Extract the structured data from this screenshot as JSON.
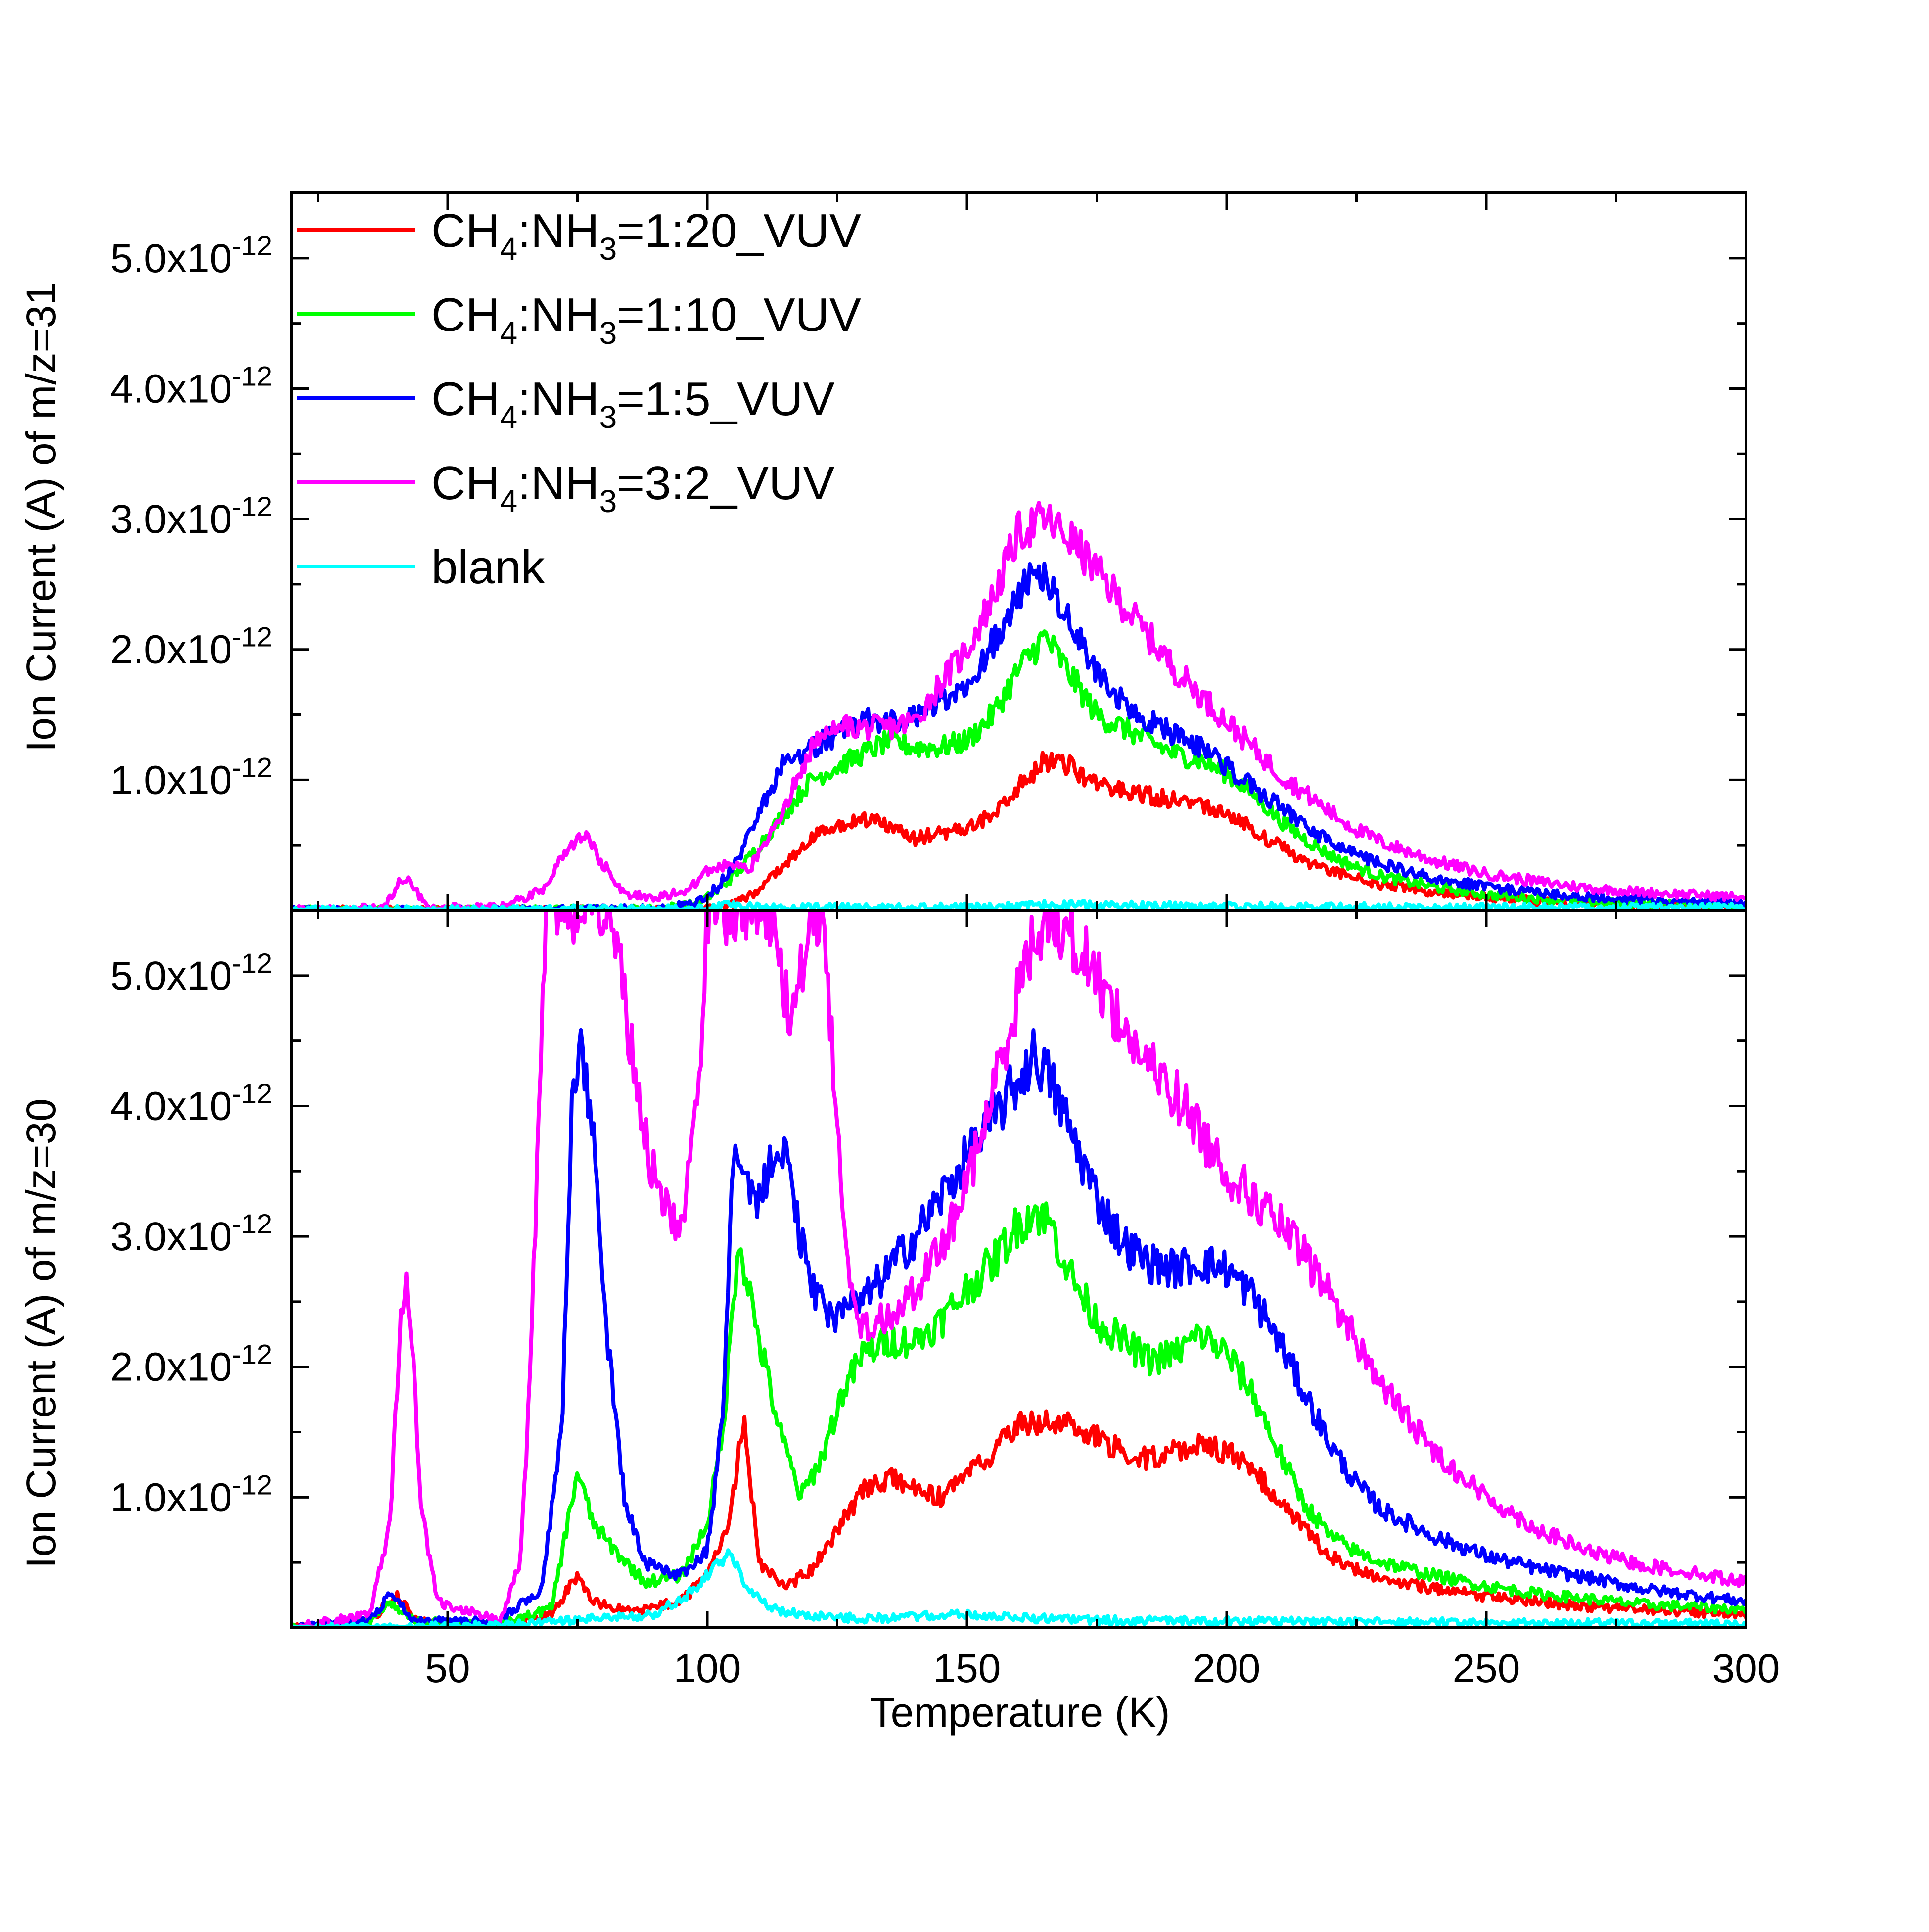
{
  "chart_data": [
    {
      "type": "line",
      "panel": "top",
      "ylabel": "Ion Current (A) of m/z=31",
      "xlabel": "",
      "xlim": [
        20,
        300
      ],
      "ylim": [
        0,
        5.5e-12
      ],
      "ytick_labels": [
        "1.0x10-12",
        "2.0x10-12",
        "3.0x10-12",
        "4.0x10-12",
        "5.0x10-12"
      ],
      "ytick_values": [
        1e-12,
        2e-12,
        3e-12,
        4e-12,
        5e-12
      ],
      "legend_position": "top-left",
      "series": [
        {
          "name": "CH4:NH3=1:20_VUV",
          "color": "#ff0000",
          "x": [
            20,
            60,
            90,
            100,
            105,
            110,
            115,
            120,
            125,
            130,
            135,
            140,
            145,
            150,
            155,
            160,
            165,
            170,
            175,
            180,
            185,
            190,
            195,
            200,
            205,
            210,
            215,
            220,
            225,
            230,
            240,
            250,
            260,
            270,
            280,
            290,
            300
          ],
          "y": [
            0,
            0,
            0,
            1e-14,
            5e-14,
            1.5e-13,
            3.5e-13,
            5.5e-13,
            6.5e-13,
            7e-13,
            6.5e-13,
            5.5e-13,
            6e-13,
            6.2e-13,
            7.5e-13,
            9.5e-13,
            1.15e-12,
            1.1e-12,
            9.5e-13,
            9.2e-13,
            8.8e-13,
            8.5e-13,
            8.2e-13,
            7.5e-13,
            6.2e-13,
            5e-13,
            3.8e-13,
            3e-13,
            2.5e-13,
            2e-13,
            1.4e-13,
            1e-13,
            7e-14,
            5e-14,
            4e-14,
            3e-14,
            2e-14
          ]
        },
        {
          "name": "CH4:NH3=1:10_VUV",
          "color": "#00ff00",
          "x": [
            20,
            60,
            90,
            98,
            102,
            106,
            110,
            115,
            120,
            125,
            130,
            135,
            140,
            145,
            150,
            155,
            160,
            165,
            170,
            175,
            180,
            185,
            190,
            195,
            200,
            205,
            210,
            215,
            220,
            225,
            230,
            240,
            250,
            260,
            270,
            280,
            290,
            300
          ],
          "y": [
            0,
            0,
            1e-14,
            5e-14,
            1.5e-13,
            3e-13,
            5e-13,
            7.5e-13,
            1e-12,
            1.1e-12,
            1.2e-12,
            1.3e-12,
            1.25e-12,
            1.25e-12,
            1.3e-12,
            1.5e-12,
            1.85e-12,
            2.1e-12,
            1.8e-12,
            1.5e-12,
            1.4e-12,
            1.3e-12,
            1.2e-12,
            1.15e-12,
            1.05e-12,
            9e-13,
            7e-13,
            5.5e-13,
            4.2e-13,
            3.3e-13,
            2.6e-13,
            1.8e-13,
            1.2e-13,
            9e-14,
            6e-14,
            5e-14,
            4e-14,
            3e-14
          ]
        },
        {
          "name": "CH4:NH3=1:5_VUV",
          "color": "#0000ff",
          "x": [
            20,
            60,
            90,
            98,
            102,
            106,
            110,
            115,
            120,
            125,
            130,
            135,
            140,
            145,
            150,
            155,
            160,
            165,
            170,
            175,
            180,
            185,
            190,
            195,
            200,
            205,
            210,
            215,
            220,
            225,
            230,
            240,
            250,
            260,
            270,
            280,
            290,
            300
          ],
          "y": [
            0,
            0,
            1e-14,
            5e-14,
            1.8e-13,
            4e-13,
            7.5e-13,
            1.15e-12,
            1.25e-12,
            1.35e-12,
            1.45e-12,
            1.45e-12,
            1.5e-12,
            1.6e-12,
            1.75e-12,
            2.05e-12,
            2.45e-12,
            2.6e-12,
            2.2e-12,
            1.85e-12,
            1.6e-12,
            1.45e-12,
            1.35e-12,
            1.25e-12,
            1.1e-12,
            9.5e-13,
            8e-13,
            6.5e-13,
            5.2e-13,
            4.2e-13,
            3.5e-13,
            2.5e-13,
            1.8e-13,
            1.3e-13,
            1e-13,
            8e-14,
            6e-14,
            5e-14
          ]
        },
        {
          "name": "CH4:NH3=3:2_VUV",
          "color": "#ff00ff",
          "x": [
            20,
            38,
            41,
            43,
            46,
            60,
            68,
            72,
            76,
            80,
            84,
            90,
            96,
            100,
            104,
            108,
            115,
            120,
            125,
            130,
            135,
            140,
            145,
            150,
            155,
            160,
            165,
            170,
            175,
            180,
            185,
            190,
            195,
            200,
            205,
            210,
            215,
            220,
            225,
            230,
            240,
            250,
            260,
            270,
            280,
            290,
            300
          ],
          "y": [
            0,
            2e-14,
            2.5e-13,
            2e-13,
            2e-14,
            2e-14,
            1.5e-13,
            4e-13,
            6e-13,
            3.5e-13,
            1.2e-13,
            1e-13,
            1.5e-13,
            3e-13,
            3.5e-13,
            3e-13,
            8e-13,
            1.25e-12,
            1.4e-12,
            1.4e-12,
            1.4e-12,
            1.45e-12,
            1.75e-12,
            2e-12,
            2.4e-12,
            2.9e-12,
            3e-12,
            2.85e-12,
            2.6e-12,
            2.35e-12,
            2.1e-12,
            1.85e-12,
            1.65e-12,
            1.45e-12,
            1.25e-12,
            1.05e-12,
            9e-13,
            7.5e-13,
            6.2e-13,
            5.2e-13,
            3.8e-13,
            2.8e-13,
            2.2e-13,
            1.7e-13,
            1.4e-13,
            1.2e-13,
            1e-13
          ]
        },
        {
          "name": "blank",
          "color": "#00ffff",
          "x": [
            20,
            100,
            105,
            110,
            150,
            165,
            200,
            250,
            300
          ],
          "y": [
            0,
            1e-14,
            5e-14,
            2e-14,
            2e-14,
            4e-14,
            3e-14,
            2e-14,
            2e-14
          ]
        }
      ]
    },
    {
      "type": "line",
      "panel": "bottom",
      "ylabel": "Ion Current (A) of m/z=30",
      "xlabel": "Temperature (K)",
      "xlim": [
        20,
        300
      ],
      "ylim": [
        0,
        5.5e-12
      ],
      "xtick_labels": [
        "50",
        "100",
        "150",
        "200",
        "250",
        "300"
      ],
      "xtick_values": [
        50,
        100,
        150,
        200,
        250,
        300
      ],
      "ytick_labels": [
        "1.0x10-12",
        "2.0x10-12",
        "3.0x10-12",
        "4.0x10-12",
        "5.0x10-12"
      ],
      "ytick_values": [
        1e-12,
        2e-12,
        3e-12,
        4e-12,
        5e-12
      ],
      "series": [
        {
          "name": "CH4:NH3=1:20_VUV",
          "color": "#ff0000",
          "x": [
            20,
            35,
            40,
            44,
            60,
            70,
            75,
            78,
            85,
            95,
            100,
            104,
            107,
            110,
            115,
            120,
            125,
            130,
            135,
            140,
            145,
            150,
            155,
            160,
            165,
            170,
            175,
            180,
            185,
            190,
            195,
            200,
            205,
            210,
            215,
            220,
            225,
            230,
            240,
            250,
            260,
            270,
            280,
            290,
            300
          ],
          "y": [
            0,
            5e-14,
            2.5e-13,
            5e-14,
            2e-14,
            1e-13,
            4e-13,
            2e-13,
            1.2e-13,
            2e-13,
            4e-13,
            7.5e-13,
            1.6e-12,
            5e-13,
            3e-13,
            4.5e-13,
            7.5e-13,
            1.05e-12,
            1.15e-12,
            1.05e-12,
            1e-12,
            1.15e-12,
            1.35e-12,
            1.55e-12,
            1.6e-12,
            1.55e-12,
            1.45e-12,
            1.35e-12,
            1.3e-12,
            1.35e-12,
            1.4e-12,
            1.35e-12,
            1.2e-12,
            1e-12,
            7.5e-13,
            5.5e-13,
            4.5e-13,
            3.8e-13,
            3e-13,
            2.4e-13,
            2e-13,
            1.6e-13,
            1.4e-13,
            1.2e-13,
            1e-13
          ]
        },
        {
          "name": "CH4:NH3=1:10_VUV",
          "color": "#00ff00",
          "x": [
            20,
            35,
            39,
            44,
            60,
            70,
            75,
            78,
            82,
            88,
            95,
            100,
            103,
            106,
            110,
            114,
            118,
            122,
            126,
            130,
            135,
            140,
            145,
            150,
            155,
            160,
            163,
            166,
            170,
            175,
            180,
            185,
            190,
            195,
            200,
            205,
            210,
            215,
            220,
            225,
            230,
            240,
            250,
            260,
            270,
            280,
            290,
            300
          ],
          "y": [
            0,
            5e-14,
            2e-13,
            5e-14,
            2e-14,
            1.5e-13,
            1.2e-12,
            8e-13,
            6e-13,
            3.5e-13,
            4e-13,
            8e-13,
            1.5e-12,
            3e-12,
            2.2e-12,
            1.5e-12,
            1e-12,
            1.3e-12,
            1.8e-12,
            2.1e-12,
            2.2e-12,
            2.2e-12,
            2.35e-12,
            2.6e-12,
            2.8e-12,
            3.1e-12,
            3.2e-12,
            3.1e-12,
            2.7e-12,
            2.35e-12,
            2.2e-12,
            2.05e-12,
            2.1e-12,
            2.25e-12,
            2.1e-12,
            1.8e-12,
            1.35e-12,
            9.5e-13,
            7e-13,
            5.8e-13,
            5e-13,
            4e-13,
            3.2e-13,
            2.6e-13,
            2.2e-13,
            1.8e-13,
            1.6e-13,
            1.4e-13
          ]
        },
        {
          "name": "CH4:NH3=1:5_VUV",
          "color": "#0000ff",
          "x": [
            20,
            35,
            39,
            44,
            60,
            68,
            72,
            74,
            76,
            78,
            80,
            84,
            88,
            95,
            100,
            103,
            105,
            108,
            110,
            113,
            115,
            118,
            120,
            124,
            130,
            135,
            140,
            145,
            150,
            155,
            160,
            163,
            166,
            170,
            175,
            180,
            185,
            190,
            195,
            200,
            205,
            210,
            215,
            220,
            225,
            230,
            240,
            250,
            260,
            270,
            280,
            290,
            300
          ],
          "y": [
            0,
            5e-14,
            2.5e-13,
            5e-14,
            5e-14,
            3e-13,
            1.5e-12,
            4.2e-12,
            4.4e-12,
            3.8e-12,
            2.5e-12,
            1e-12,
            5e-13,
            4e-13,
            6e-13,
            1.6e-12,
            3.6e-12,
            3.4e-12,
            3.3e-12,
            3.7e-12,
            3.6e-12,
            3e-12,
            2.6e-12,
            2.35e-12,
            2.5e-12,
            2.75e-12,
            3e-12,
            3.3e-12,
            3.6e-12,
            3.9e-12,
            4.2e-12,
            4.4e-12,
            4.2e-12,
            3.8e-12,
            3.3e-12,
            2.95e-12,
            2.8e-12,
            2.75e-12,
            2.8e-12,
            2.75e-12,
            2.55e-12,
            2.2e-12,
            1.8e-12,
            1.4e-12,
            1.1e-12,
            9e-13,
            7e-13,
            5.5e-13,
            4.5e-13,
            3.8e-13,
            3e-13,
            2.5e-13,
            2e-13
          ]
        },
        {
          "name": "CH4:NH3=3:2_VUV",
          "color": "#ff00ff",
          "x": [
            20,
            35,
            39,
            41,
            42,
            43,
            45,
            48,
            60,
            64,
            66,
            68,
            69,
            72,
            76,
            80,
            82,
            84,
            86,
            88,
            90,
            93,
            95,
            97,
            99,
            100,
            104,
            110,
            112,
            114,
            116,
            118,
            120,
            122,
            124,
            126,
            128,
            130,
            135,
            140,
            145,
            150,
            155,
            160,
            163,
            166,
            170,
            175,
            180,
            185,
            190,
            195,
            200,
            205,
            210,
            215,
            220,
            225,
            230,
            240,
            250,
            260,
            270,
            280,
            290,
            300
          ],
          "y": [
            0,
            1e-13,
            8e-13,
            2.5e-12,
            2.65e-12,
            2.3e-12,
            9e-13,
            2e-13,
            5e-14,
            5e-13,
            2e-12,
            4.5e-12,
            5.5e-12,
            5.5e-12,
            5.5e-12,
            5.5e-12,
            5.5e-12,
            4.8e-12,
            4.3e-12,
            3.8e-12,
            3.4e-12,
            3.1e-12,
            3.05e-12,
            3.6e-12,
            4.6e-12,
            5.5e-12,
            5.5e-12,
            5.5e-12,
            5.5e-12,
            5e-12,
            4.7e-12,
            5e-12,
            5.5e-12,
            5.5e-12,
            4.5e-12,
            3.2e-12,
            2.5e-12,
            2.3e-12,
            2.4e-12,
            2.6e-12,
            2.9e-12,
            3.4e-12,
            4.1e-12,
            4.9e-12,
            5.3e-12,
            5.5e-12,
            5.3e-12,
            5e-12,
            4.6e-12,
            4.3e-12,
            4.1e-12,
            3.8e-12,
            3.5e-12,
            3.3e-12,
            3.1e-12,
            2.85e-12,
            2.55e-12,
            2.2e-12,
            1.85e-12,
            1.35e-12,
            1e-12,
            7.5e-13,
            5.8e-13,
            4.8e-13,
            4.2e-13,
            3.5e-13
          ]
        },
        {
          "name": "blank",
          "color": "#00ffff",
          "x": [
            20,
            60,
            90,
            98,
            102,
            104,
            106,
            108,
            112,
            118,
            130,
            150,
            170,
            200,
            250,
            300
          ],
          "y": [
            0,
            2e-14,
            1e-13,
            3e-13,
            5e-13,
            5.5e-13,
            4.5e-13,
            3e-13,
            1.5e-13,
            1e-13,
            7e-14,
            1e-13,
            6e-14,
            5e-14,
            4e-14,
            3e-14
          ]
        }
      ]
    }
  ],
  "legend": {
    "entries": [
      {
        "prefix": "CH",
        "sub1": "4",
        "mid": ":NH",
        "sub2": "3",
        "suffix": "=1:20_VUV",
        "color": "#ff0000"
      },
      {
        "prefix": "CH",
        "sub1": "4",
        "mid": ":NH",
        "sub2": "3",
        "suffix": "=1:10_VUV",
        "color": "#00ff00"
      },
      {
        "prefix": "CH",
        "sub1": "4",
        "mid": ":NH",
        "sub2": "3",
        "suffix": "=1:5_VUV",
        "color": "#0000ff"
      },
      {
        "prefix": "CH",
        "sub1": "4",
        "mid": ":NH",
        "sub2": "3",
        "suffix": "=3:2_VUV",
        "color": "#ff00ff"
      },
      {
        "prefix": "blank",
        "sub1": "",
        "mid": "",
        "sub2": "",
        "suffix": "",
        "color": "#00ffff"
      }
    ]
  }
}
